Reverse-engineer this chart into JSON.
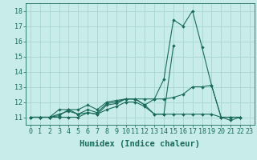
{
  "background_color": "#c8ece9",
  "grid_color": "#a8d5d0",
  "line_color": "#1a6b5a",
  "xlabel": "Humidex (Indice chaleur)",
  "xlabel_fontsize": 7.5,
  "tick_fontsize": 6,
  "xlim": [
    -0.5,
    23.5
  ],
  "ylim": [
    10.5,
    18.5
  ],
  "yticks": [
    11,
    12,
    13,
    14,
    15,
    16,
    17,
    18
  ],
  "xticks": [
    0,
    1,
    2,
    3,
    4,
    5,
    6,
    7,
    8,
    9,
    10,
    11,
    12,
    13,
    14,
    15,
    16,
    17,
    18,
    19,
    20,
    21,
    22,
    23
  ],
  "series": [
    [
      11,
      11,
      11,
      11.5,
      11.5,
      11.2,
      11.5,
      11.3,
      11.9,
      12.0,
      12.2,
      12.2,
      11.8,
      12.2,
      13.5,
      17.4,
      17.0,
      18.0,
      15.6,
      13.1,
      11.0,
      10.8,
      11.0,
      null
    ],
    [
      11,
      11,
      11,
      11.2,
      11.4,
      11.2,
      11.3,
      11.2,
      11.8,
      11.9,
      12.2,
      12.2,
      11.8,
      11.2,
      11.2,
      15.7,
      null,
      null,
      null,
      null,
      null,
      null,
      null,
      null
    ],
    [
      11,
      11,
      11,
      11.0,
      11.0,
      11.0,
      11.3,
      11.2,
      11.5,
      11.7,
      12.0,
      12.0,
      11.7,
      11.2,
      11.2,
      11.2,
      11.2,
      11.2,
      11.2,
      11.2,
      11.0,
      11.0,
      11.0,
      null
    ],
    [
      11,
      11,
      11,
      11.1,
      11.5,
      11.5,
      11.8,
      11.5,
      12.0,
      12.1,
      12.2,
      12.2,
      12.2,
      12.2,
      12.2,
      12.3,
      12.5,
      13.0,
      13.0,
      13.1,
      11.0,
      11.0,
      11.0,
      null
    ]
  ]
}
